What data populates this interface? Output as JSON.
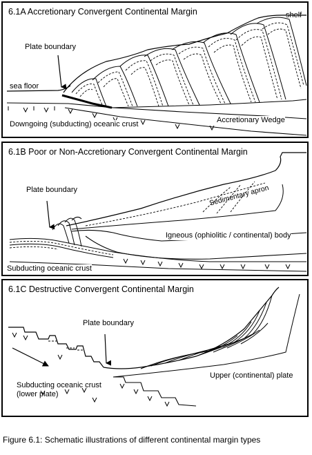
{
  "panel_a": {
    "title": "6.1A  Accretionary Convergent Continental Margin",
    "labels": {
      "shelf": "shelf",
      "plate_boundary": "Plate boundary",
      "sea_floor": "sea floor",
      "downgoing_crust": "Downgoing (subducting) oceanic crust",
      "accretionary_wedge": "Accretionary Wedge"
    }
  },
  "panel_b": {
    "title": "6.1B  Poor or Non-Accretionary Convergent Continental Margin",
    "labels": {
      "plate_boundary": "Plate boundary",
      "sedimentary_apron": "Sedimentary apron",
      "igneous_body": "Igneous (ophiolitic / continental) body",
      "subducting_crust": "Subducting oceanic crust"
    }
  },
  "panel_c": {
    "title": "6.1C  Destructive Convergent Continental Margin",
    "labels": {
      "plate_boundary": "Plate boundary",
      "subducting_crust_line1": "Subducting oceanic crust",
      "subducting_crust_line2": "(lower plate)",
      "upper_plate": "Upper (continental) plate"
    }
  },
  "caption": "Figure 6.1: Schematic illustrations of different continental margin types"
}
